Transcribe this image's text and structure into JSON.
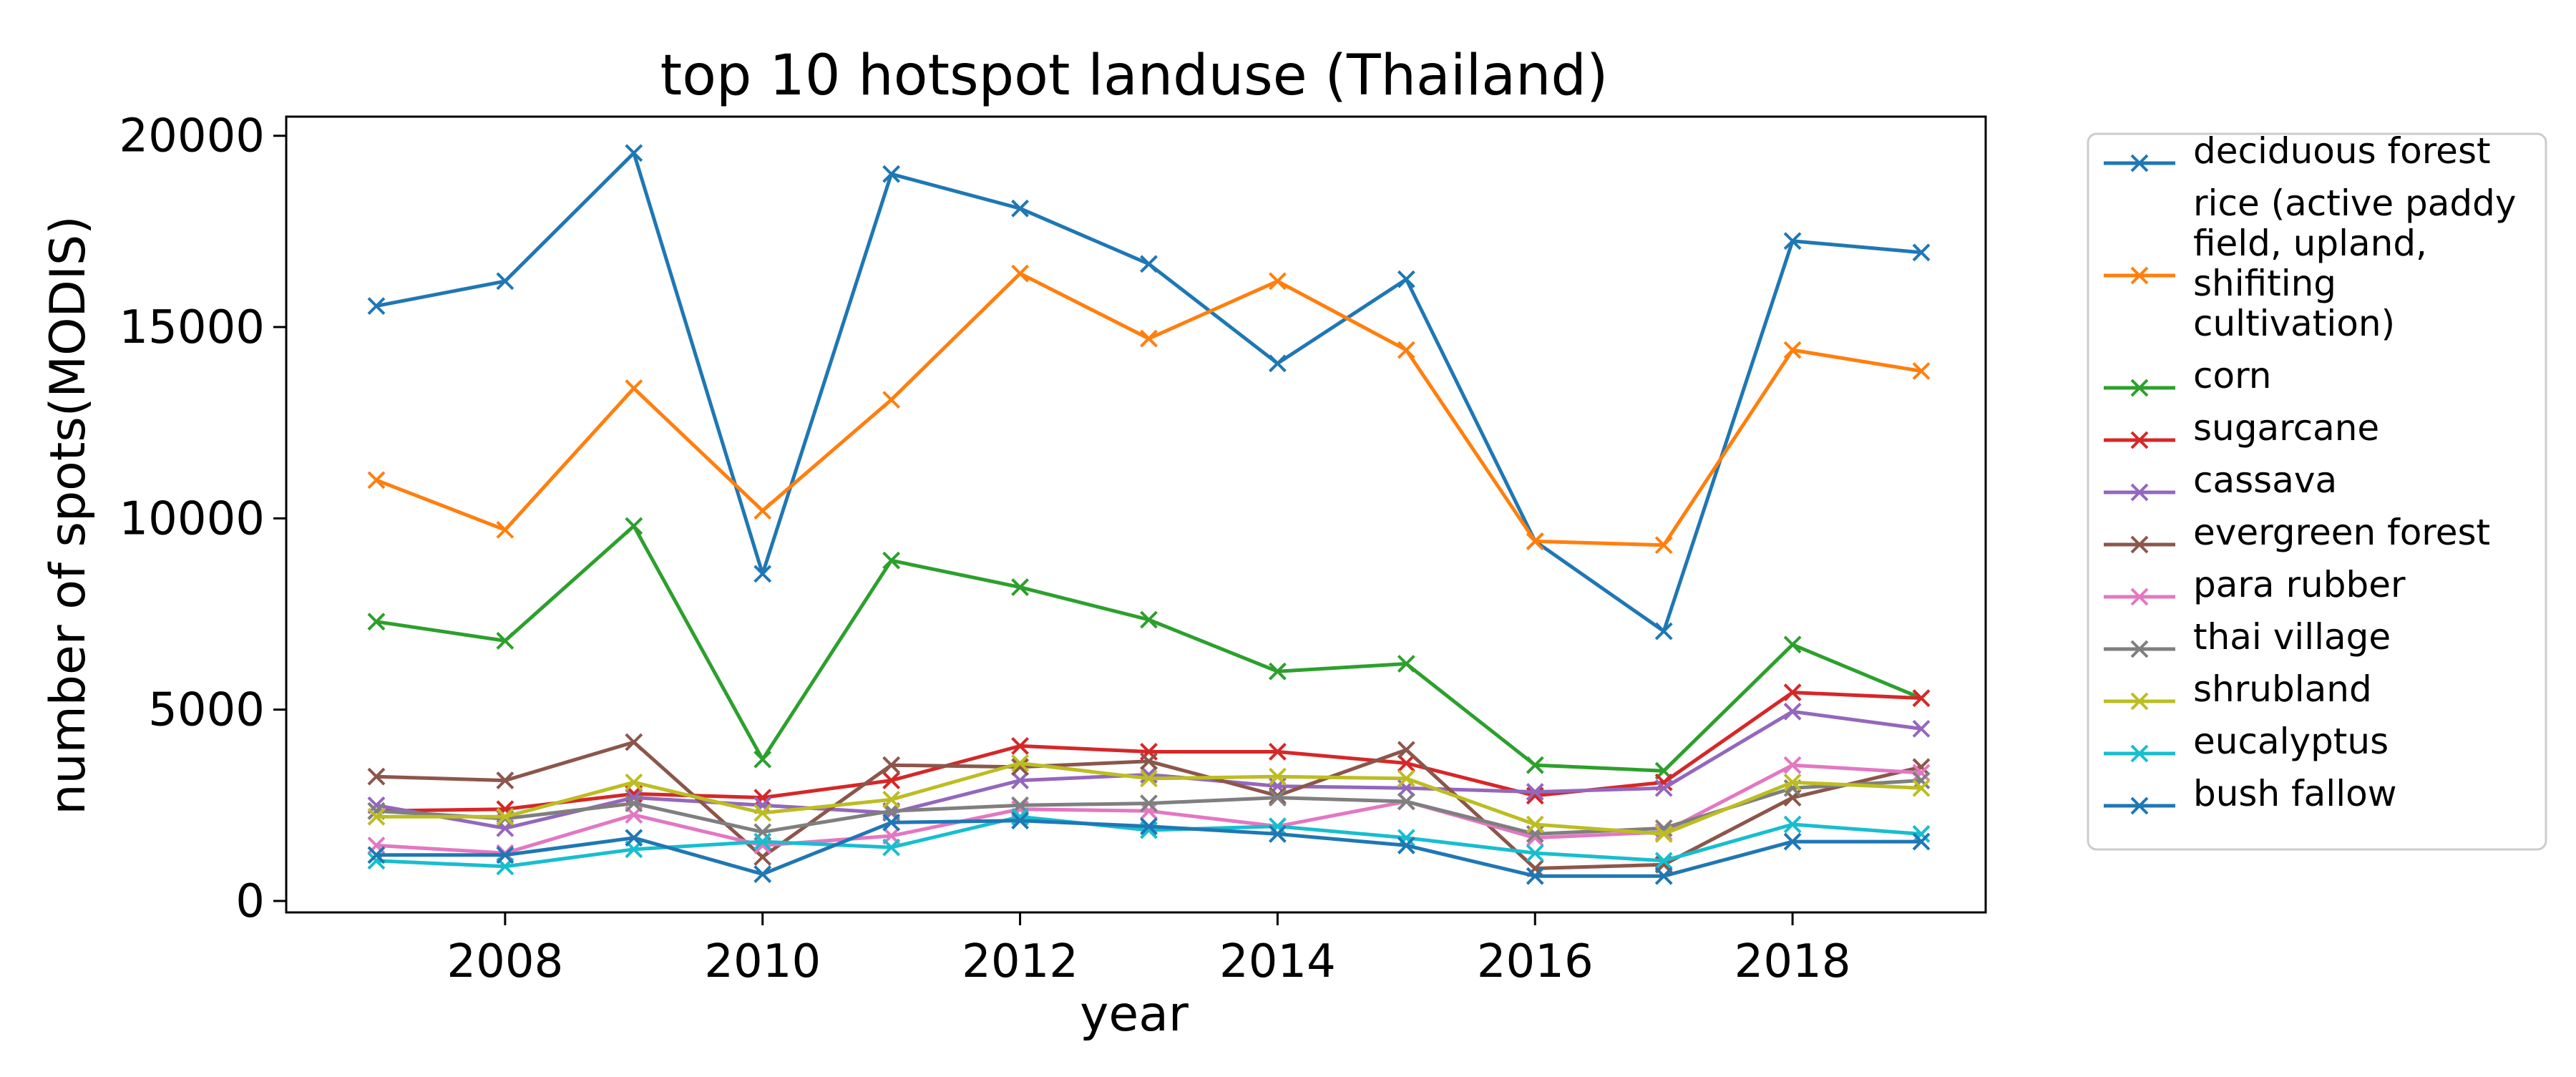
{
  "chart_data": {
    "type": "line",
    "title": "top 10 hotspot landuse (Thailand)",
    "xlabel": "year",
    "ylabel": "number of spots(MODIS)",
    "xlim": [
      2006.3,
      2019.5
    ],
    "ylim": [
      -300,
      20500
    ],
    "xticks": [
      2008,
      2010,
      2012,
      2014,
      2016,
      2018
    ],
    "yticks": [
      0,
      5000,
      10000,
      15000,
      20000
    ],
    "grid": false,
    "legend_position": "outside-right",
    "marker": "x",
    "x": [
      2007,
      2008,
      2009,
      2010,
      2011,
      2012,
      2013,
      2014,
      2015,
      2016,
      2017,
      2018,
      2019
    ],
    "series": [
      {
        "name": "deciduous forest",
        "color": "#1f77b4",
        "values": [
          15550,
          16200,
          19550,
          8550,
          19000,
          18100,
          16650,
          14050,
          16250,
          9400,
          7050,
          17250,
          16950
        ]
      },
      {
        "name": "rice (active paddy field, upland, shifiting cultivation)",
        "name_lines": [
          "rice (active paddy",
          "field, upland,",
          "shifiting",
          "cultivation)"
        ],
        "color": "#ff7f0e",
        "values": [
          11000,
          9700,
          13400,
          10200,
          13100,
          16400,
          14700,
          16200,
          14400,
          9400,
          9300,
          14400,
          13850
        ]
      },
      {
        "name": "corn",
        "color": "#2ca02c",
        "values": [
          7300,
          6800,
          9800,
          3700,
          8900,
          8200,
          7350,
          6000,
          6200,
          3550,
          3400,
          6700,
          5300
        ]
      },
      {
        "name": "sugarcane",
        "color": "#d62728",
        "values": [
          2350,
          2400,
          2800,
          2700,
          3150,
          4050,
          3900,
          3900,
          3600,
          2750,
          3100,
          5450,
          5300
        ]
      },
      {
        "name": "cassava",
        "color": "#9467bd",
        "values": [
          2500,
          1900,
          2700,
          2500,
          2300,
          3150,
          3300,
          3000,
          2950,
          2850,
          2950,
          4950,
          4500
        ]
      },
      {
        "name": "evergreen forest",
        "color": "#8c564b",
        "values": [
          3250,
          3150,
          4150,
          1150,
          3550,
          3500,
          3650,
          2750,
          3950,
          850,
          950,
          2700,
          3500
        ]
      },
      {
        "name": "para rubber",
        "color": "#e377c2",
        "values": [
          1450,
          1250,
          2250,
          1450,
          1700,
          2400,
          2350,
          1950,
          2600,
          1650,
          1800,
          3550,
          3350
        ]
      },
      {
        "name": "thai village",
        "color": "#7f7f7f",
        "values": [
          2350,
          2150,
          2550,
          1800,
          2350,
          2500,
          2550,
          2700,
          2600,
          1750,
          1900,
          2950,
          3150
        ]
      },
      {
        "name": "shrubland",
        "color": "#bcbd22",
        "values": [
          2200,
          2200,
          3100,
          2300,
          2650,
          3600,
          3200,
          3250,
          3200,
          2000,
          1750,
          3100,
          2950
        ]
      },
      {
        "name": "eucalyptus",
        "color": "#17becf",
        "values": [
          1050,
          900,
          1350,
          1550,
          1400,
          2200,
          1850,
          1950,
          1650,
          1250,
          1050,
          2000,
          1750
        ]
      },
      {
        "name": "bush fallow",
        "color": "#1f77b4",
        "values": [
          1200,
          1200,
          1650,
          700,
          2050,
          2100,
          1950,
          1750,
          1450,
          650,
          650,
          1550,
          1550
        ]
      }
    ]
  }
}
